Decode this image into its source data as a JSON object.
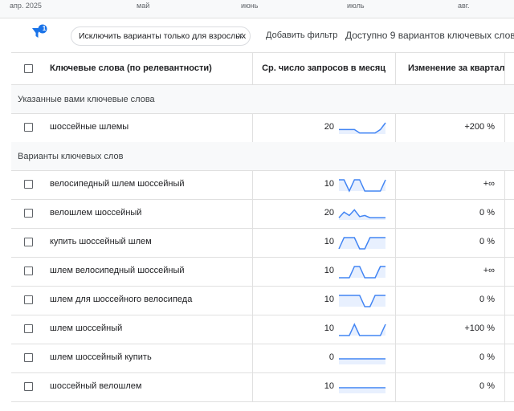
{
  "timeline": {
    "months": [
      "апр. 2025",
      "май",
      "июнь",
      "июль",
      "авг."
    ]
  },
  "toolbar": {
    "filter_count": 1,
    "chip": "Исключить варианты только для взрослых",
    "add_filter": "Добавить фильтр",
    "summary": "Доступно 9 вариантов ключевых слов"
  },
  "table": {
    "headers": [
      "Ключевые слова (по релевантности)",
      "Ср. число запросов в месяц",
      "Изменение за квартал"
    ],
    "groups": [
      {
        "title": "Указанные вами ключевые слова",
        "rows": [
          {
            "keyword": "шоссейные шлемы",
            "searches": 20,
            "trend": [
              40,
              40,
              40,
              40,
              10,
              10,
              10,
              10,
              40,
              100
            ],
            "change": "+200 %"
          }
        ]
      },
      {
        "title": "Варианты ключевых слов",
        "rows": [
          {
            "keyword": "велосипедный шлем шоссейный",
            "searches": 10,
            "trend": [
              100,
              100,
              0,
              100,
              100,
              0,
              0,
              0,
              0,
              100
            ],
            "change": "+∞"
          },
          {
            "keyword": "велошлем шоссейный",
            "searches": 20,
            "trend": [
              20,
              70,
              40,
              90,
              30,
              40,
              20,
              20,
              20,
              20
            ],
            "change": "0 %"
          },
          {
            "keyword": "купить шоссейный шлем",
            "searches": 10,
            "trend": [
              0,
              100,
              100,
              100,
              0,
              0,
              100,
              100,
              100,
              100
            ],
            "change": "0 %"
          },
          {
            "keyword": "шлем велосипедный шоссейный",
            "searches": 10,
            "trend": [
              0,
              0,
              0,
              100,
              100,
              0,
              0,
              0,
              100,
              100
            ],
            "change": "+∞"
          },
          {
            "keyword": "шлем для шоссейного велосипеда",
            "searches": 10,
            "trend": [
              100,
              100,
              100,
              100,
              100,
              0,
              0,
              100,
              100,
              100
            ],
            "change": "0 %"
          },
          {
            "keyword": "шлем шоссейный",
            "searches": 10,
            "trend": [
              0,
              0,
              0,
              100,
              0,
              0,
              0,
              0,
              0,
              100
            ],
            "change": "+100 %"
          },
          {
            "keyword": "шлем шоссейный купить",
            "searches": 0,
            "trend": [
              50,
              50,
              50,
              50,
              50,
              50,
              50,
              50,
              50,
              50
            ],
            "change": "0 %"
          },
          {
            "keyword": "шоссейный велошлем",
            "searches": 10,
            "trend": [
              50,
              50,
              50,
              50,
              50,
              50,
              50,
              50,
              50,
              50
            ],
            "change": "0 %"
          }
        ]
      }
    ]
  }
}
